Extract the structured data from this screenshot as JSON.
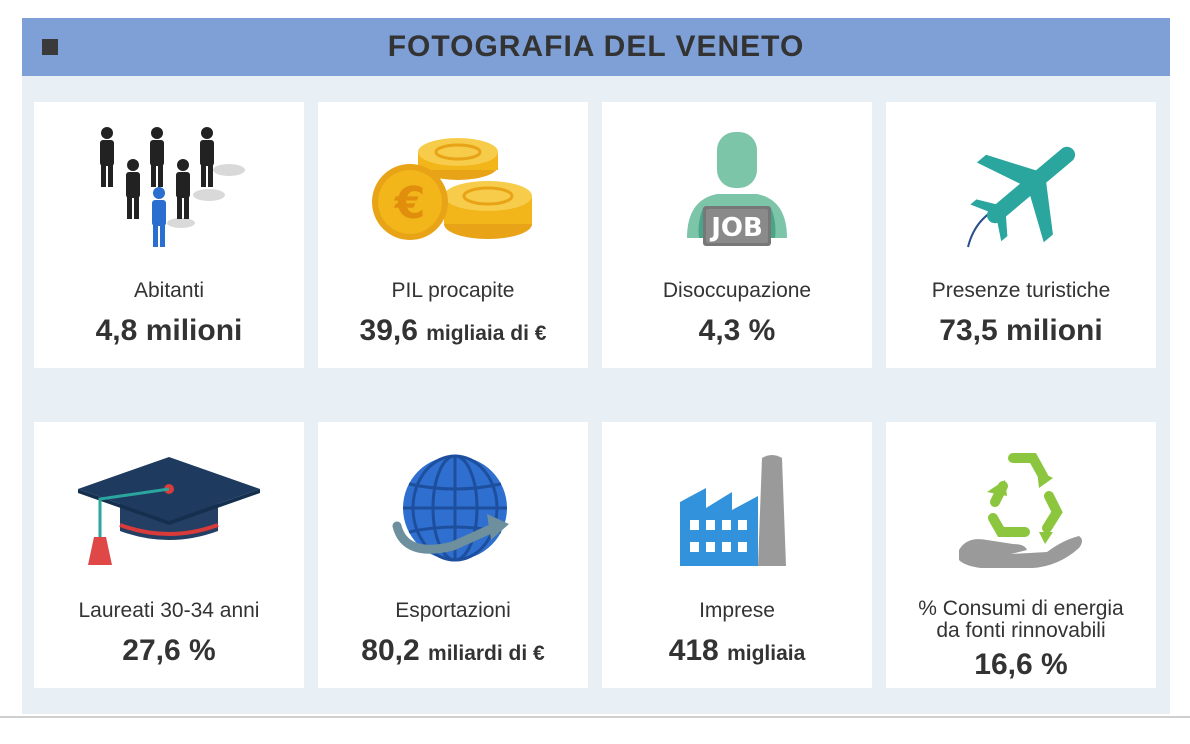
{
  "header": {
    "title": "FOTOGRAFIA DEL VENETO"
  },
  "cards": [
    {
      "icon": "people-icon",
      "label": "Abitanti",
      "value": "4,8",
      "unit": "milioni"
    },
    {
      "icon": "coins-icon",
      "label": "PIL procapite",
      "value": "39,6",
      "unit": "migliaia di €"
    },
    {
      "icon": "job-seeker-icon",
      "label": "Disoccupazione",
      "value": "4,3 %",
      "unit": "",
      "icon_text": "JOB"
    },
    {
      "icon": "airplane-icon",
      "label": "Presenze turistiche",
      "value": "73,5",
      "unit": "milioni"
    },
    {
      "icon": "graduation-cap-icon",
      "label": "Laureati 30-34 anni",
      "value": "27,6 %",
      "unit": ""
    },
    {
      "icon": "globe-icon",
      "label": "Esportazioni",
      "value": "80,2",
      "unit": "miliardi di €"
    },
    {
      "icon": "factory-icon",
      "label": "Imprese",
      "value": "418",
      "unit": "migliaia"
    },
    {
      "icon": "recycle-hand-icon",
      "label": "% Consumi di energia",
      "label2": "da fonti rinnovabili",
      "value": "16,6 %",
      "unit": ""
    }
  ],
  "colors": {
    "header": "#7fa0d6",
    "panel": "#e8eff5",
    "teal": "#2aa69e",
    "gold": "#f2b51a",
    "navy": "#1e3a5f"
  }
}
